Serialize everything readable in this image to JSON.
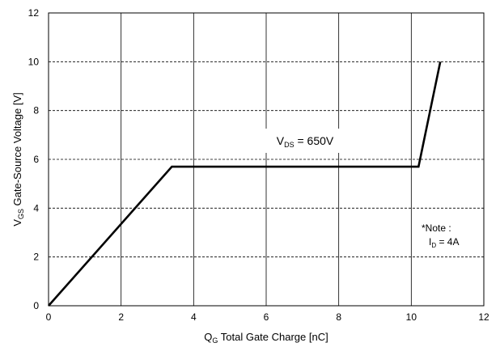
{
  "chart_data": {
    "type": "line",
    "title": "",
    "xlabel": {
      "main": "Q",
      "sub": "G",
      "rest": " Total Gate Charge [nC]"
    },
    "ylabel": {
      "main": "V",
      "sub": "GS",
      "rest": " Gate-Source Voltage [V]"
    },
    "xlim": [
      0,
      12
    ],
    "ylim": [
      0,
      12
    ],
    "x_ticks": [
      "0",
      "2",
      "4",
      "6",
      "8",
      "10",
      "12"
    ],
    "y_ticks": [
      "0",
      "2",
      "4",
      "6",
      "8",
      "10",
      "12"
    ],
    "grid": {
      "vertical": "solid",
      "horizontal": "dashed"
    },
    "series": [
      {
        "x": [
          0,
          3.4,
          10.2,
          10.8
        ],
        "y": [
          0,
          5.7,
          5.7,
          10.0
        ]
      }
    ],
    "annotations": {
      "vds": {
        "main": "V",
        "sub": "DS",
        "rest": " = 650V"
      },
      "note_title": "*Note :",
      "note_id": {
        "main": "I",
        "sub": "D",
        "rest": " = 4A"
      }
    }
  }
}
